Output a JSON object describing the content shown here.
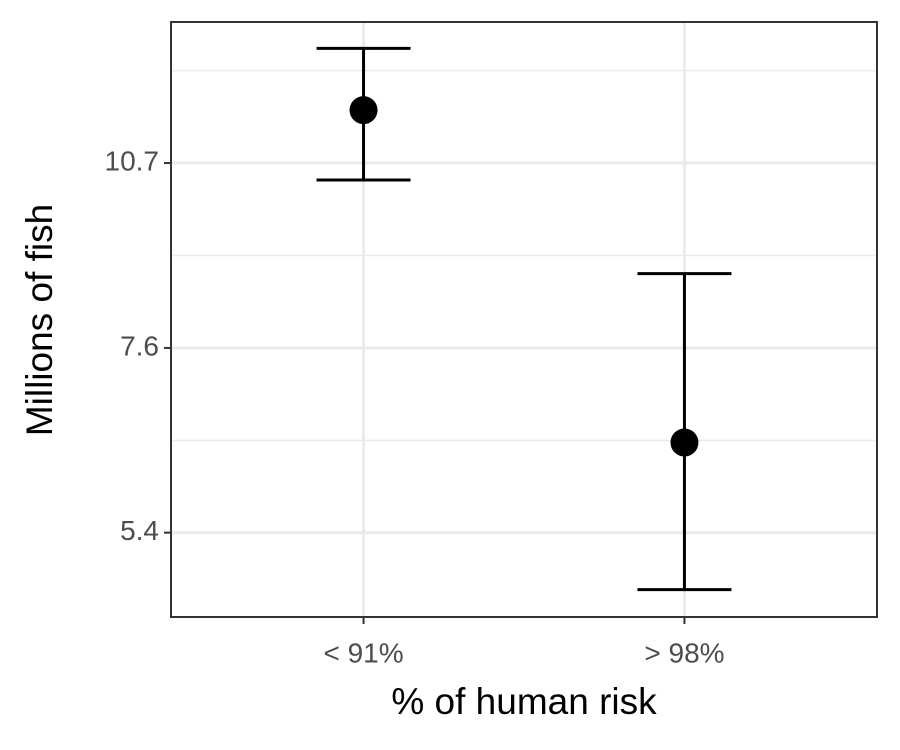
{
  "chart_data": {
    "type": "errorpoint",
    "x_label": "% of human risk",
    "y_label": "Millions of fish",
    "categories": [
      "< 91%",
      "> 98%"
    ],
    "series": [
      {
        "color": "#000000",
        "values": [
          11.8,
          6.38
        ],
        "lower": [
          10.37,
          4.86
        ],
        "upper": [
          13.23,
          8.72
        ]
      }
    ],
    "ylim": [
      4.62,
      13.89
    ],
    "yticks": [
      5.4,
      7.6,
      10.7
    ],
    "log_y": true,
    "grid": true
  }
}
